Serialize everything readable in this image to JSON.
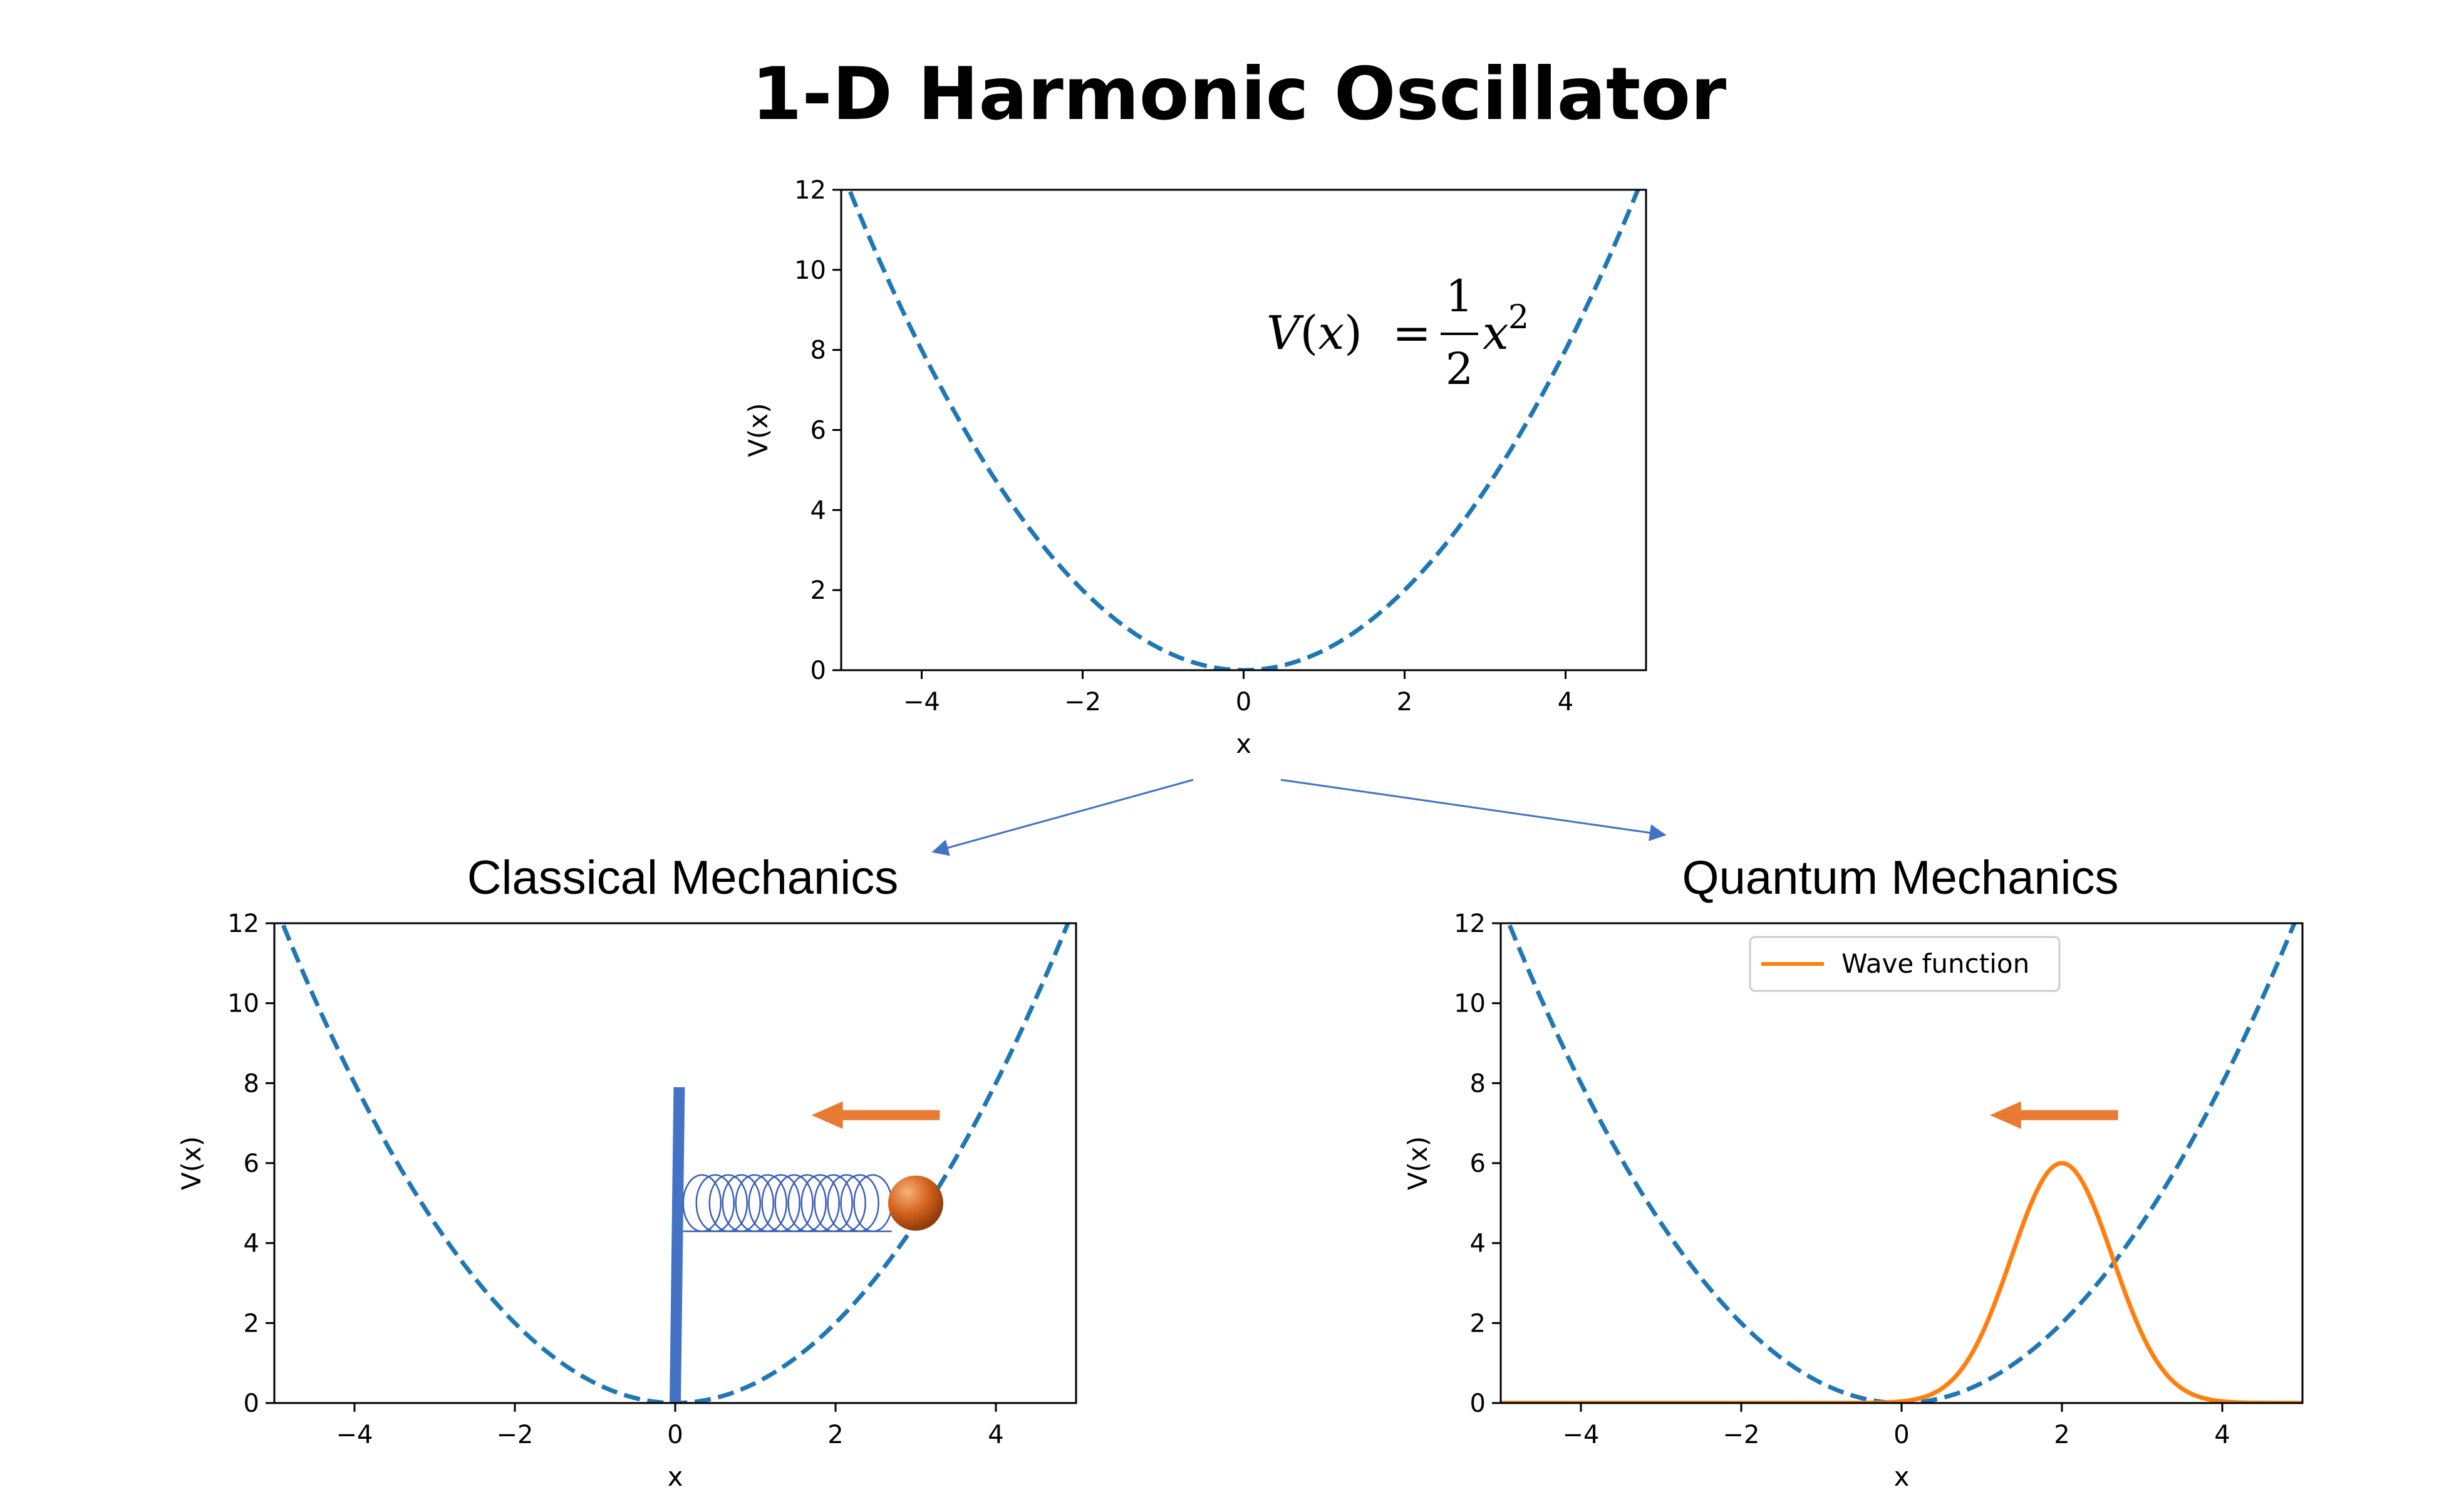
{
  "title": "1-D Harmonic Oscillator",
  "colors": {
    "potential": "#1f77b4",
    "wave": "#ff7f0e",
    "arrow": "#e87a34",
    "wall": "#4472c4",
    "spring": "#3a5fb8",
    "ball": "#d0601a",
    "connector": "#4472c4"
  },
  "equation": {
    "lhs_fn": "V",
    "lhs_var": "x",
    "numerator": "1",
    "denominator": "2",
    "var": "x",
    "power": "2"
  },
  "panels": [
    {
      "id": "top",
      "heading": "",
      "xlabel": "x",
      "ylabel": "V(x)",
      "xticks": [
        "−4",
        "−2",
        "0",
        "2",
        "4"
      ],
      "yticks": [
        "0",
        "2",
        "4",
        "6",
        "8",
        "10",
        "12"
      ]
    },
    {
      "id": "classical",
      "heading": "Classical Mechanics",
      "xlabel": "x",
      "ylabel": "V(x)",
      "xticks": [
        "−4",
        "−2",
        "0",
        "2",
        "4"
      ],
      "yticks": [
        "0",
        "2",
        "4",
        "6",
        "8",
        "10",
        "12"
      ]
    },
    {
      "id": "quantum",
      "heading": "Quantum Mechanics",
      "xlabel": "x",
      "ylabel": "V(x)",
      "xticks": [
        "−4",
        "−2",
        "0",
        "2",
        "4"
      ],
      "yticks": [
        "0",
        "2",
        "4",
        "6",
        "8",
        "10",
        "12"
      ],
      "legend": "Wave function"
    }
  ],
  "chart_data": [
    {
      "type": "line",
      "panel": "top",
      "series": [
        {
          "function": "V(x) = x^2 / 2",
          "style": "dashed"
        }
      ],
      "xlabel": "x",
      "ylabel": "V(x)",
      "xlim": [
        -5,
        5
      ],
      "ylim": [
        0,
        12
      ],
      "grid": false
    },
    {
      "type": "line",
      "panel": "classical",
      "series": [
        {
          "function": "V(x) = x^2 / 2",
          "style": "dashed"
        }
      ],
      "xlabel": "x",
      "ylabel": "V(x)",
      "xlim": [
        -5,
        5
      ],
      "ylim": [
        0,
        12
      ],
      "grid": false,
      "wall": {
        "x": [
          0.0,
          0.05
        ],
        "y": [
          0,
          7.9
        ]
      },
      "spring": {
        "x_start": 0.1,
        "x_end": 2.7,
        "y": 5.0,
        "coils": 14
      },
      "mass": {
        "x": 3.0,
        "y": 5.0
      },
      "arrow": {
        "x_from": 3.3,
        "x_to": 1.7,
        "y": 7.2
      }
    },
    {
      "type": "line",
      "panel": "quantum",
      "series": [
        {
          "function": "V(x) = x^2 / 2",
          "style": "dashed"
        },
        {
          "name": "Wave function",
          "function": "6 * exp(-(x - 2)^2 / 0.8)",
          "style": "solid"
        }
      ],
      "xlabel": "x",
      "ylabel": "V(x)",
      "xlim": [
        -5,
        5
      ],
      "ylim": [
        0,
        12
      ],
      "grid": false,
      "legend": "upper center",
      "arrow": {
        "x_from": 2.7,
        "x_to": 1.1,
        "y": 7.2
      }
    }
  ]
}
